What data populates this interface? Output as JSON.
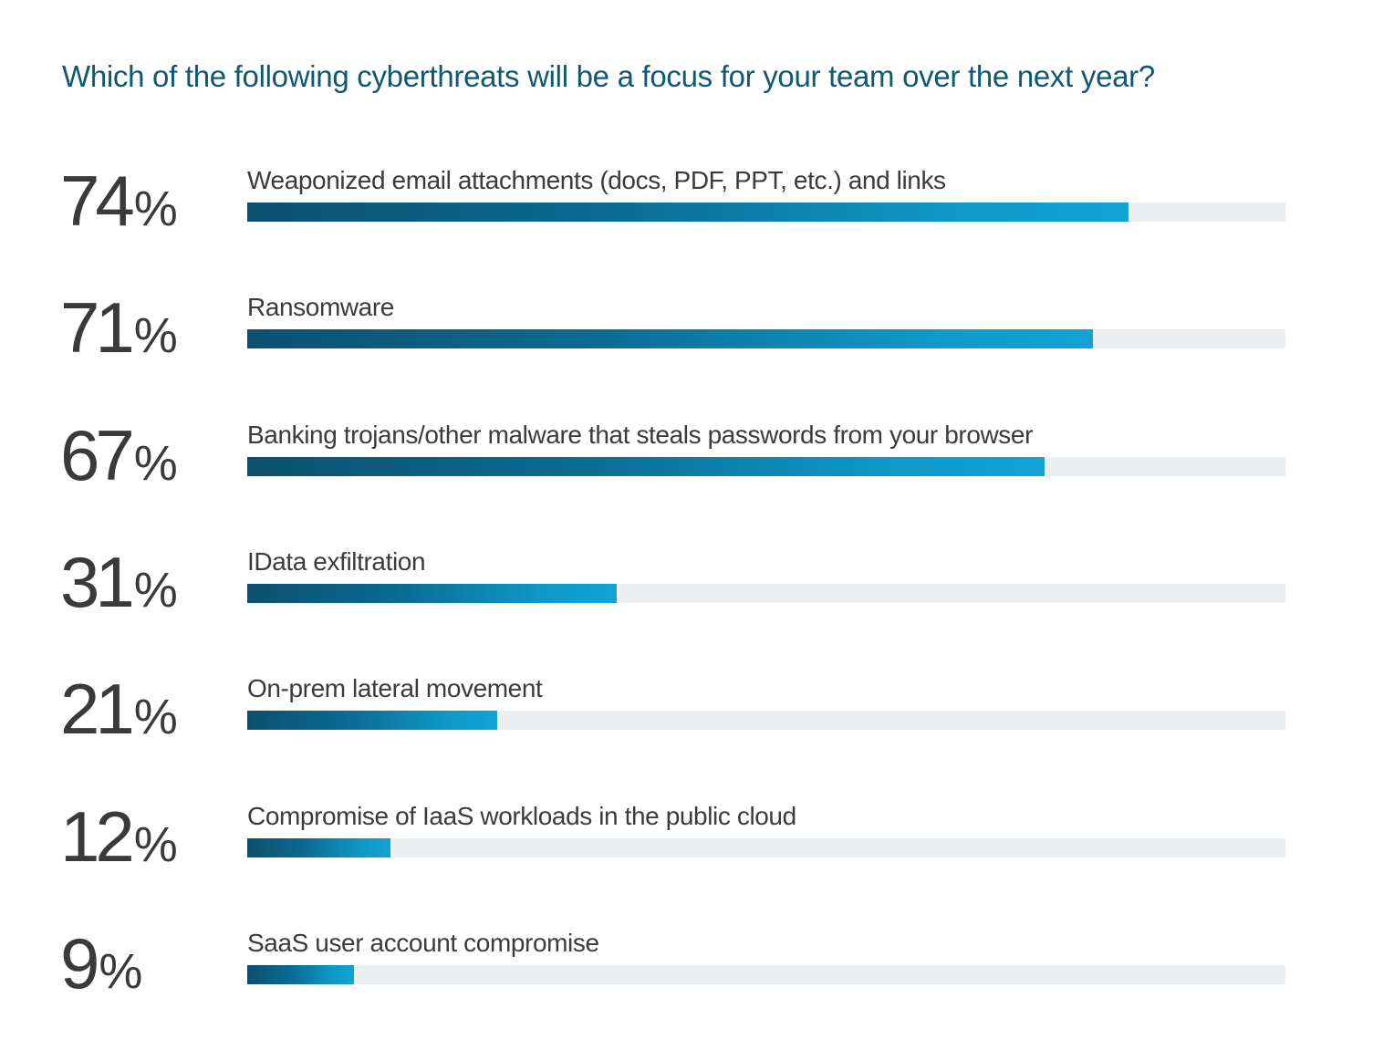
{
  "chart_data": {
    "type": "bar",
    "title": "Which of the following cyberthreats will be a focus for your team over the next year?",
    "percent_symbol": "%",
    "categories": [
      "Weaponized email attachments (docs, PDF, PPT, etc.) and links",
      "Ransomware",
      "Banking trojans/other malware that steals passwords from your browser",
      "IData exfiltration",
      "On-prem lateral movement",
      "Compromise of IaaS workloads in the public cloud",
      "SaaS user account compromise"
    ],
    "values": [
      74,
      71,
      67,
      31,
      21,
      12,
      9
    ],
    "value_labels": [
      "74",
      "71",
      "67",
      "31",
      "21",
      "12",
      "9"
    ],
    "xlim": [
      0,
      87.2
    ],
    "grid": false,
    "orientation": "horizontal"
  },
  "colors": {
    "title": "#0f5872",
    "bar_start": "#0c506f",
    "bar_end": "#11a3d4",
    "track": "#ebeff2",
    "text": "#3a3a3a"
  }
}
